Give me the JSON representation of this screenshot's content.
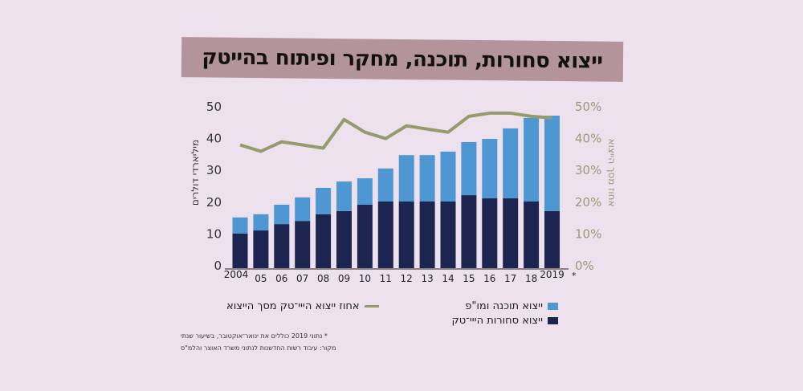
{
  "title": "ייצוא סחורות, תוכנה, מחקר ופיתוח בהייטק",
  "chart_data": {
    "type": "bar",
    "stacked": true,
    "title": "ייצוא סחורות, תוכנה, מחקר ופיתוח בהייטק",
    "categories": [
      "2004",
      "05",
      "06",
      "07",
      "08",
      "09",
      "10",
      "11",
      "12",
      "13",
      "14",
      "15",
      "16",
      "17",
      "18",
      "2019"
    ],
    "category_note": "*",
    "ylabel": "מיליארדי דולרים",
    "ylim": [
      0,
      50
    ],
    "yticks": [
      "0",
      "10",
      "20",
      "30",
      "40",
      "50"
    ],
    "y2label": "אחוז מסך הייצוא",
    "y2lim": [
      0,
      50
    ],
    "y2ticks": [
      "0%",
      "10%",
      "20%",
      "30%",
      "40%",
      "50%"
    ],
    "series": [
      {
        "name": "ייצוא סחורות הייי־טק",
        "kind": "bar",
        "color": "#1c2450",
        "values": [
          10.1,
          11.1,
          13.1,
          14.1,
          16.2,
          17.2,
          19.2,
          20.2,
          20.2,
          20.2,
          20.2,
          22.2,
          21.2,
          21.2,
          20.2,
          17.2
        ]
      },
      {
        "name": "ייצוא תוכנה ומו\"פ",
        "kind": "bar",
        "color": "#4f97d3",
        "values": [
          5.1,
          5.1,
          6.1,
          7.4,
          8.3,
          9.3,
          8.3,
          10.4,
          14.6,
          14.6,
          15.7,
          16.7,
          18.7,
          22.0,
          26.3,
          30.0
        ]
      },
      {
        "name": "אחוז ייצוא הייי־טק מסך הייצוא",
        "kind": "line",
        "axis": "right",
        "color": "#949b6c",
        "values": [
          38,
          36,
          39,
          38,
          37,
          46,
          42,
          40,
          44,
          43,
          42,
          47,
          48,
          48,
          47,
          46.5
        ]
      }
    ],
    "legend": [
      "ייצוא תוכנה ומו\"פ",
      "ייצוא סחורות הייי־טק",
      "אחוז ייצוא הייי־טק מסך הייצוא"
    ],
    "grid": false
  },
  "footnotes": [
    "* נתוני 2019 כוללים את ינואר־אוקטובר, בשיעור שנתי",
    "מקור: עיבוד רשות החדשנות לנתוני משרד האוצר והלמ\"ס"
  ]
}
